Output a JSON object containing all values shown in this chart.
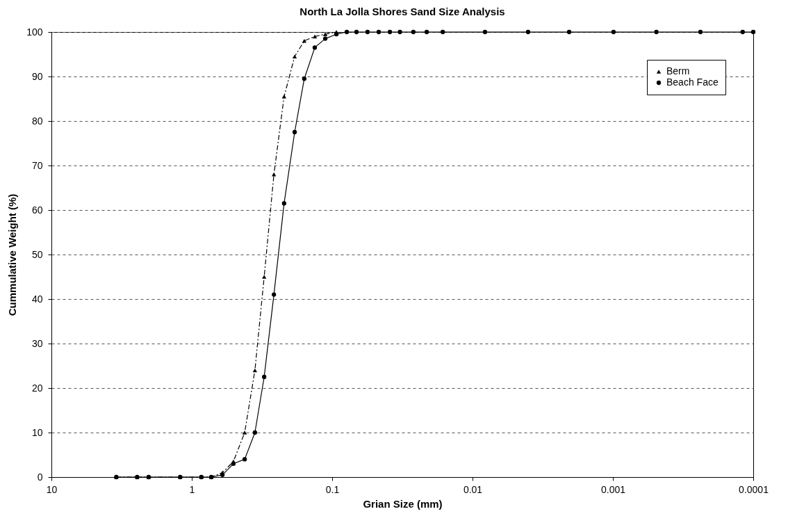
{
  "chart_data": {
    "type": "line",
    "title": "North La Jolla Shores Sand Size Analysis",
    "xlabel": "Grian Size (mm)",
    "ylabel": "Cummulative Weight (%)",
    "log": "x",
    "xlim": [
      10,
      0.0001
    ],
    "xticks": [
      10,
      1,
      0.1,
      0.01,
      0.001,
      0.0001
    ],
    "ylim": [
      0,
      100
    ],
    "yticks": [
      0,
      10,
      20,
      30,
      40,
      50,
      60,
      70,
      80,
      90,
      100
    ],
    "grid": "y",
    "legend": "top right",
    "series": [
      {
        "name": "Berm",
        "color": "#000000",
        "marker": "triangle",
        "line_style": "dashed",
        "x": [
          3.45,
          2.45,
          2.03,
          1.21,
          0.855,
          0.726,
          0.605,
          0.505,
          0.42,
          0.355,
          0.305,
          0.26,
          0.22,
          0.185,
          0.158,
          0.133,
          0.112,
          0.0933
        ],
        "values": [
          0,
          0,
          0,
          0,
          0,
          0,
          1,
          3.5,
          10,
          24,
          45,
          68,
          85.5,
          94.5,
          98,
          99,
          99.5,
          100
        ]
      },
      {
        "name": "Beach Face",
        "color": "#000000",
        "marker": "circle",
        "line_style": "solid",
        "x": [
          3.45,
          2.45,
          2.03,
          1.21,
          0.855,
          0.726,
          0.605,
          0.505,
          0.42,
          0.355,
          0.305,
          0.26,
          0.22,
          0.185,
          0.158,
          0.133,
          0.112,
          0.0933,
          0.0787,
          0.0671,
          0.056,
          0.0466,
          0.0388,
          0.0329,
          0.0264,
          0.0212,
          0.0163,
          0.00815,
          0.00402,
          0.00205,
          0.00099,
          0.00049,
          0.000238,
          0.000119,
          0.0001
        ],
        "values": [
          0,
          0,
          0,
          0,
          0,
          0,
          0.5,
          3,
          4,
          10,
          22.5,
          41,
          61.5,
          77.5,
          89.5,
          96.5,
          98.5,
          99.5,
          100,
          100,
          100,
          100,
          100,
          100,
          100,
          100,
          100,
          100,
          100,
          100,
          100,
          100,
          100,
          100,
          100
        ]
      }
    ]
  }
}
